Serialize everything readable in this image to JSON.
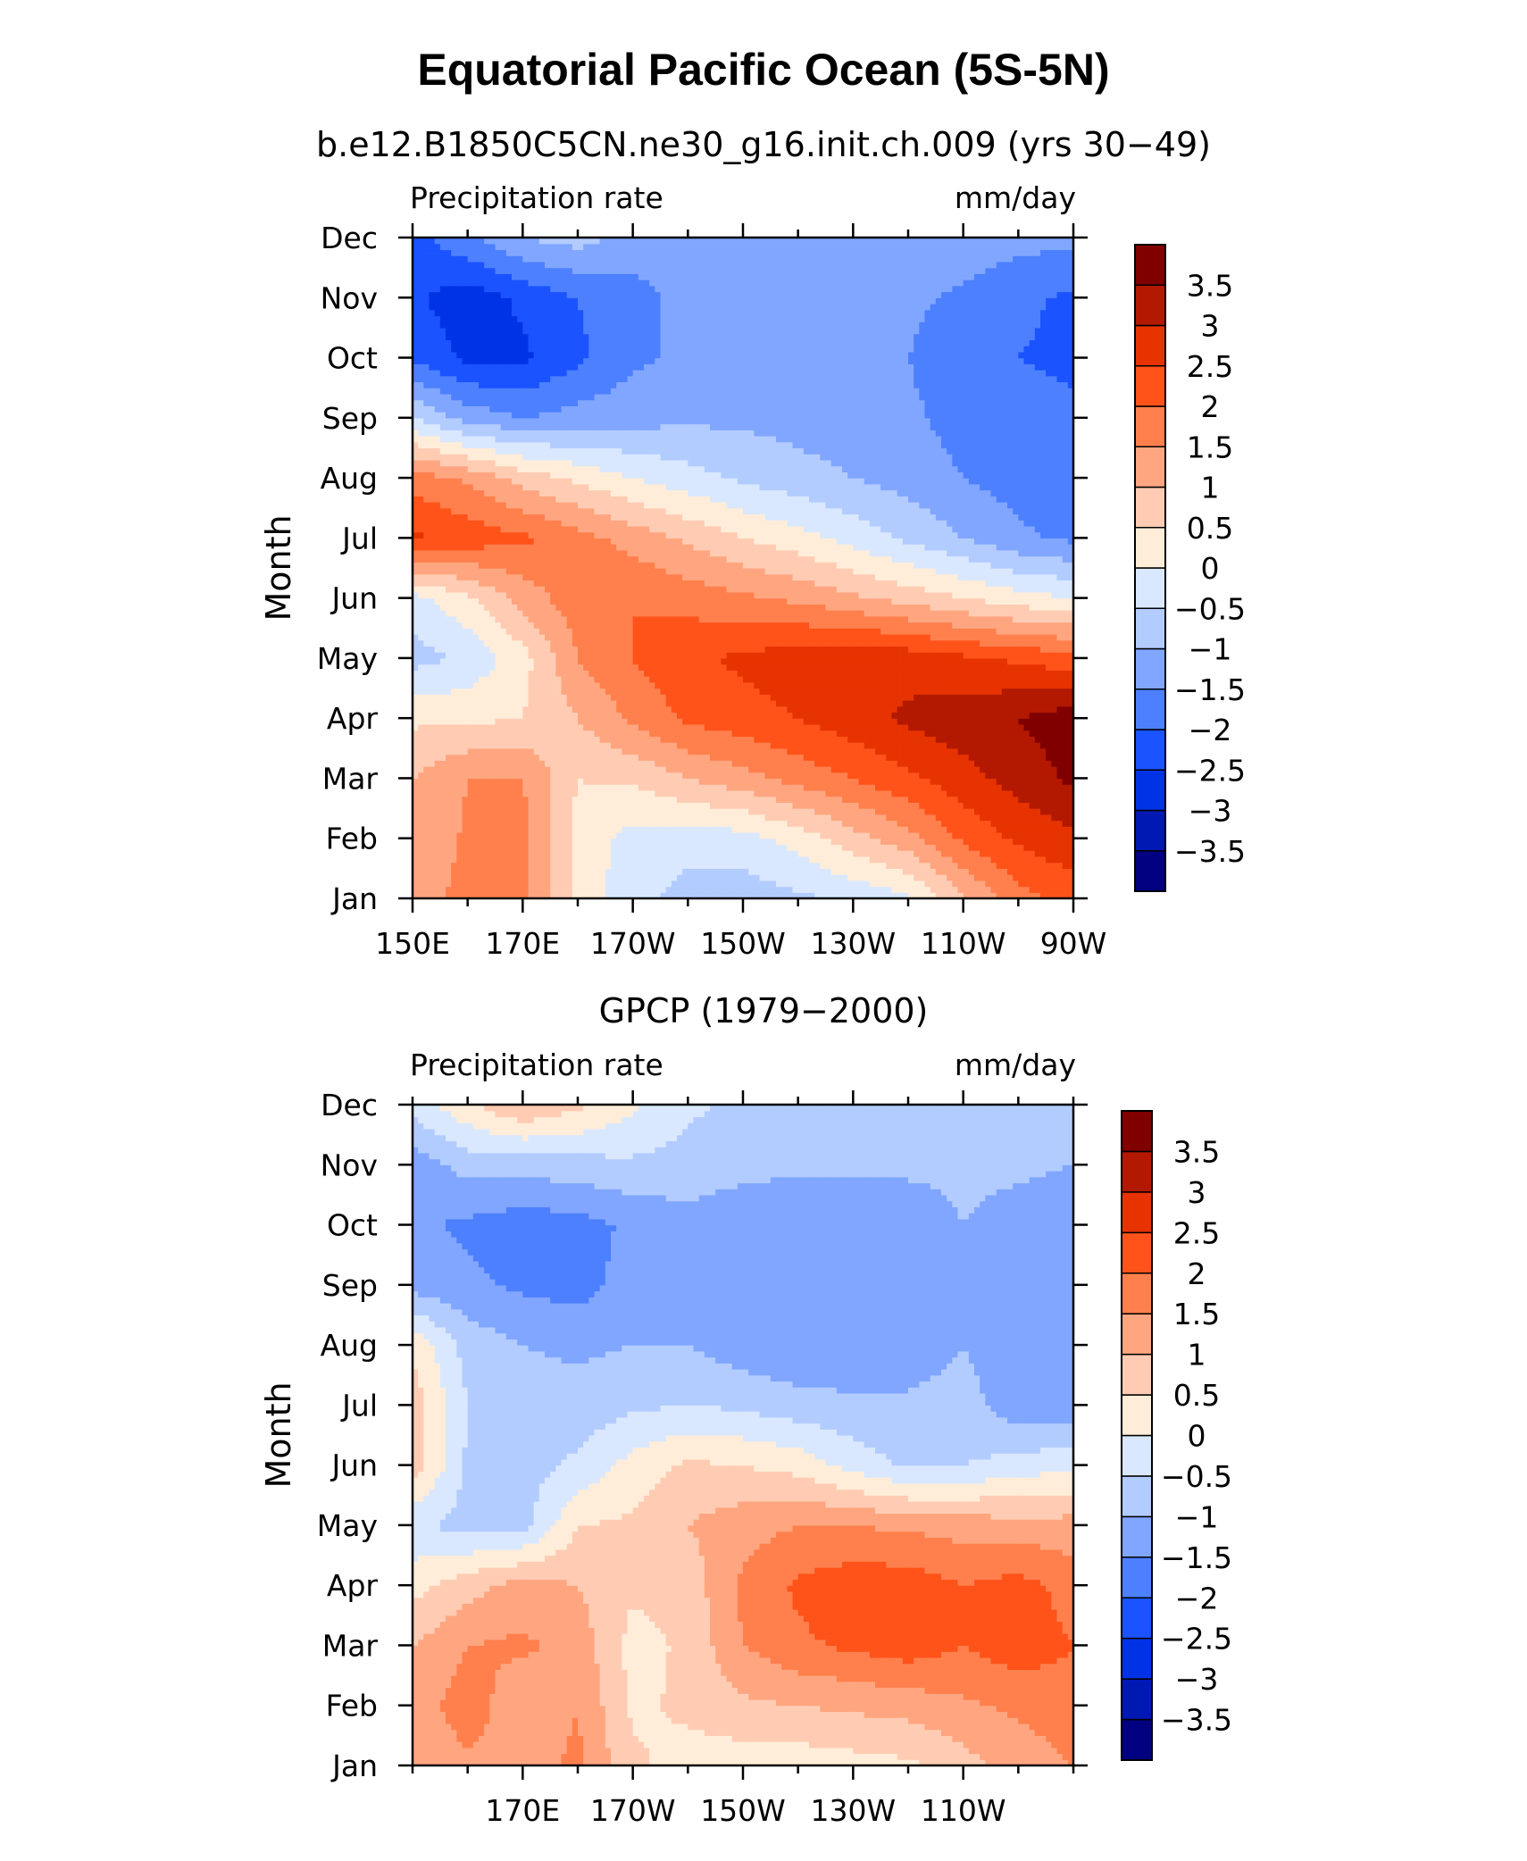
{
  "title": "Equatorial Pacific Ocean (5S-5N)",
  "palette": [
    "#000080",
    "#0019b3",
    "#0033e6",
    "#1a53ff",
    "#4d80ff",
    "#80a6ff",
    "#b3ccff",
    "#d9e8ff",
    "#ffedd9",
    "#ffccb3",
    "#ffa680",
    "#ff804d",
    "#ff531a",
    "#e63300",
    "#b31900",
    "#800000"
  ],
  "chart_data": [
    {
      "type": "heatmap",
      "title": "b.e12.B1850C5CN.ne30_g16.init.ch.009 (yrs 30−49)",
      "left_label": "Precipitation rate",
      "right_label": "mm/day",
      "ylabel": "Month",
      "xlabel": "",
      "x": [
        150,
        160,
        170,
        180,
        190,
        200,
        210,
        220,
        230,
        240,
        250,
        260,
        270
      ],
      "x_ticks": [
        {
          "v": 150,
          "label": "150E"
        },
        {
          "v": 170,
          "label": "170E"
        },
        {
          "v": 190,
          "label": "170W"
        },
        {
          "v": 210,
          "label": "150W"
        },
        {
          "v": 230,
          "label": "130W"
        },
        {
          "v": 250,
          "label": "110W"
        },
        {
          "v": 270,
          "label": "90W"
        }
      ],
      "y": [
        "Jan",
        "Feb",
        "Mar",
        "Apr",
        "May",
        "Jun",
        "Jul",
        "Aug",
        "Sep",
        "Oct",
        "Nov",
        "Dec"
      ],
      "z": [
        [
          1.2,
          1.7,
          1.7,
          0.3,
          -0.3,
          -0.7,
          -0.8,
          -0.6,
          -0.4,
          -0.1,
          0.9,
          1.8,
          2.2
        ],
        [
          1.0,
          1.6,
          1.7,
          0.3,
          -0.2,
          -0.3,
          -0.2,
          0.2,
          0.8,
          1.3,
          2.1,
          2.6,
          2.9
        ],
        [
          1.0,
          1.5,
          1.5,
          0.5,
          0.6,
          1.0,
          1.3,
          1.7,
          2.0,
          2.4,
          2.8,
          3.2,
          3.6
        ],
        [
          0.4,
          0.4,
          0.5,
          1.0,
          1.6,
          2.1,
          2.3,
          2.5,
          2.8,
          3.1,
          3.3,
          3.5,
          3.8
        ],
        [
          -0.7,
          -0.4,
          0.3,
          1.5,
          2.0,
          2.4,
          2.6,
          2.8,
          2.9,
          2.8,
          2.6,
          2.4,
          2.2
        ],
        [
          -0.2,
          0.4,
          1.2,
          1.8,
          2.0,
          1.8,
          1.6,
          1.4,
          1.1,
          0.8,
          0.5,
          0.2,
          0.0
        ],
        [
          2.6,
          2.3,
          2.1,
          1.7,
          1.3,
          0.9,
          0.5,
          0.2,
          -0.2,
          -0.6,
          -1.0,
          -1.4,
          -1.6
        ],
        [
          1.8,
          1.4,
          0.8,
          0.4,
          0.0,
          -0.3,
          -0.6,
          -0.8,
          -1.0,
          -1.2,
          -1.5,
          -1.7,
          -1.9
        ],
        [
          -0.5,
          -1.2,
          -1.5,
          -1.3,
          -1.2,
          -1.1,
          -1.1,
          -1.2,
          -1.3,
          -1.4,
          -1.7,
          -1.8,
          -1.9
        ],
        [
          -2.1,
          -2.6,
          -2.6,
          -2.1,
          -1.6,
          -1.4,
          -1.3,
          -1.3,
          -1.4,
          -1.5,
          -1.8,
          -2.0,
          -2.1
        ],
        [
          -2.4,
          -2.8,
          -2.4,
          -2.0,
          -1.7,
          -1.3,
          -1.2,
          -1.2,
          -1.3,
          -1.4,
          -1.6,
          -1.9,
          -2.1
        ],
        [
          -2.2,
          -1.6,
          -1.0,
          -0.8,
          -1.2,
          -1.3,
          -1.3,
          -1.3,
          -1.2,
          -1.2,
          -1.2,
          -1.3,
          -1.4
        ]
      ],
      "levels": [
        -3.5,
        -3,
        -2.5,
        -2,
        -1.5,
        -1,
        -0.5,
        0,
        0.5,
        1,
        1.5,
        2,
        2.5,
        3,
        3.5
      ],
      "level_labels": [
        "−3.5",
        "−3",
        "−2.5",
        "−2",
        "−1.5",
        "−1",
        "−0.5",
        "0",
        "0.5",
        "1",
        "1.5",
        "2",
        "2.5",
        "3",
        "3.5"
      ],
      "xlim": [
        150,
        270
      ],
      "grid": false,
      "legend": "colorbar-right"
    },
    {
      "type": "heatmap",
      "title": "GPCP (1979−2000)",
      "left_label": "Precipitation rate",
      "right_label": "mm/day",
      "ylabel": "Month",
      "xlabel": "",
      "x": [
        150,
        160,
        170,
        180,
        190,
        200,
        210,
        220,
        230,
        240,
        250,
        260,
        270
      ],
      "x_ticks": [
        {
          "v": 170,
          "label": "170E"
        },
        {
          "v": 190,
          "label": "170W"
        },
        {
          "v": 210,
          "label": "150W"
        },
        {
          "v": 230,
          "label": "130W"
        },
        {
          "v": 250,
          "label": "110W"
        }
      ],
      "y": [
        "Jan",
        "Feb",
        "Mar",
        "Apr",
        "May",
        "Jun",
        "Jul",
        "Aug",
        "Sep",
        "Oct",
        "Nov",
        "Dec"
      ],
      "z": [
        [
          1.0,
          1.4,
          1.3,
          1.6,
          0.6,
          0.3,
          0.2,
          0.2,
          0.3,
          0.4,
          0.8,
          1.2,
          1.5
        ],
        [
          1.2,
          1.8,
          1.1,
          1.5,
          0.4,
          0.6,
          0.9,
          1.0,
          1.1,
          1.2,
          1.4,
          1.6,
          1.8
        ],
        [
          1.0,
          1.5,
          1.6,
          1.3,
          0.3,
          0.6,
          1.5,
          1.9,
          2.1,
          2.3,
          2.0,
          2.3,
          2.0
        ],
        [
          0.3,
          0.8,
          1.2,
          1.0,
          0.6,
          0.7,
          1.6,
          2.1,
          2.3,
          2.3,
          2.0,
          2.2,
          1.8
        ],
        [
          -0.4,
          -0.7,
          -0.7,
          0.5,
          0.6,
          1.0,
          1.3,
          1.5,
          1.5,
          1.4,
          1.3,
          1.2,
          1.2
        ],
        [
          0.8,
          -0.6,
          -0.7,
          -0.4,
          0.2,
          0.6,
          0.5,
          0.3,
          -0.2,
          -0.6,
          -0.5,
          -0.3,
          -0.1
        ],
        [
          0.8,
          -0.5,
          -0.8,
          -0.8,
          -0.6,
          -0.5,
          -0.6,
          -0.8,
          -0.9,
          -0.9,
          -0.8,
          -1.3,
          -1.4
        ],
        [
          0.4,
          -0.7,
          -1.0,
          -1.1,
          -1.0,
          -1.0,
          -1.3,
          -1.4,
          -1.4,
          -1.3,
          -1.0,
          -1.3,
          -1.2
        ],
        [
          -1.2,
          -1.4,
          -1.6,
          -1.7,
          -1.3,
          -1.0,
          -1.4,
          -1.4,
          -1.4,
          -1.3,
          -1.2,
          -1.2,
          -1.2
        ],
        [
          -1.4,
          -1.6,
          -1.8,
          -1.7,
          -1.4,
          -1.2,
          -1.4,
          -1.5,
          -1.4,
          -1.3,
          -1.0,
          -1.2,
          -1.4
        ],
        [
          -1.3,
          -0.8,
          -0.8,
          -0.7,
          -0.6,
          -0.7,
          -0.8,
          -0.9,
          -0.9,
          -0.9,
          -0.9,
          -0.9,
          -1.0
        ],
        [
          -0.3,
          0.4,
          1.0,
          0.6,
          0.1,
          -0.4,
          -0.6,
          -0.7,
          -0.7,
          -0.7,
          -0.8,
          -0.8,
          -0.8
        ]
      ],
      "levels": [
        -3.5,
        -3,
        -2.5,
        -2,
        -1.5,
        -1,
        -0.5,
        0,
        0.5,
        1,
        1.5,
        2,
        2.5,
        3,
        3.5
      ],
      "level_labels": [
        "−3.5",
        "−3",
        "−2.5",
        "−2",
        "−1.5",
        "−1",
        "−0.5",
        "0",
        "0.5",
        "1",
        "1.5",
        "2",
        "2.5",
        "3",
        "3.5"
      ],
      "xlim": [
        150,
        270
      ],
      "grid": false,
      "legend": "colorbar-right"
    }
  ]
}
